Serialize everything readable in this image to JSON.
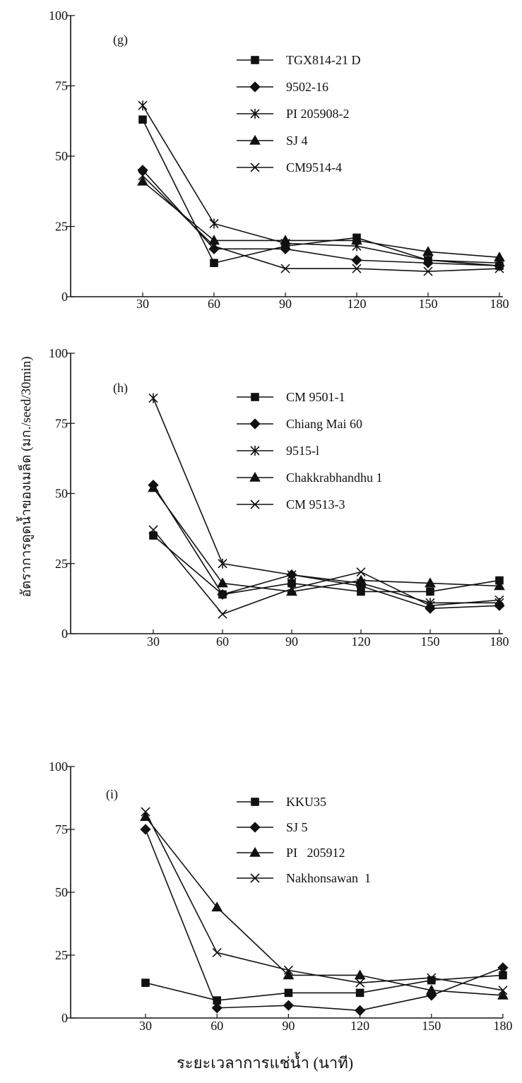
{
  "figure": {
    "xlabel": "ระยะเวลาการแช่น้ำ (นาที)",
    "ylabel": "อัตราการดูดน้ำของเมล็ด (มก./seed/30min)"
  },
  "chart_data": [
    {
      "type": "line",
      "panel_label": "(g)",
      "x": [
        30,
        60,
        90,
        120,
        150,
        180
      ],
      "xticks": [
        "30",
        "60",
        "90",
        "120",
        "150",
        "180"
      ],
      "yticks": [
        "0",
        "25",
        "50",
        "75",
        "100"
      ],
      "ylim": [
        0,
        100
      ],
      "legend_position": "top-right",
      "series": [
        {
          "name": "TGX814-21 D",
          "marker": "square",
          "values": [
            63,
            12,
            18,
            21,
            13,
            11
          ]
        },
        {
          "name": "9502-16",
          "marker": "diamond",
          "values": [
            45,
            17,
            17,
            13,
            12,
            11
          ]
        },
        {
          "name": "PI 205908-2",
          "marker": "asterisk",
          "values": [
            68,
            26,
            19,
            18,
            13,
            12
          ]
        },
        {
          "name": "SJ 4",
          "marker": "triangle",
          "values": [
            41,
            20,
            20,
            20,
            16,
            14
          ]
        },
        {
          "name": "CM9514-4",
          "marker": "x",
          "values": [
            43,
            18,
            10,
            10,
            9,
            10
          ]
        }
      ]
    },
    {
      "type": "line",
      "panel_label": "(h)",
      "x": [
        30,
        60,
        90,
        120,
        150,
        180
      ],
      "xticks": [
        "30",
        "60",
        "90",
        "120",
        "150",
        "180"
      ],
      "yticks": [
        "0",
        "25",
        "50",
        "75",
        "100"
      ],
      "ylim": [
        0,
        100
      ],
      "legend_position": "top-right",
      "series": [
        {
          "name": "CM 9501-1",
          "marker": "square",
          "values": [
            35,
            14,
            18,
            15,
            15,
            19
          ]
        },
        {
          "name": "Chiang Mai 60",
          "marker": "diamond",
          "values": [
            53,
            14,
            21,
            17,
            9,
            10
          ]
        },
        {
          "name": "9515-l",
          "marker": "asterisk",
          "values": [
            84,
            25,
            21,
            18,
            11,
            11
          ]
        },
        {
          "name": "Chakkrabhandhu 1",
          "marker": "triangle",
          "values": [
            52,
            18,
            15,
            19,
            18,
            17
          ]
        },
        {
          "name": "CM 9513-3",
          "marker": "x",
          "values": [
            37,
            7,
            16,
            22,
            10,
            12
          ]
        }
      ]
    },
    {
      "type": "line",
      "panel_label": "(i)",
      "x": [
        30,
        60,
        90,
        120,
        150,
        180
      ],
      "xticks": [
        "30",
        "60",
        "90",
        "120",
        "150",
        "180"
      ],
      "yticks": [
        "0",
        "25",
        "50",
        "75",
        "100"
      ],
      "ylim": [
        0,
        100
      ],
      "legend_position": "top-right",
      "series": [
        {
          "name": "KKU35",
          "marker": "square",
          "values": [
            14,
            7,
            10,
            10,
            15,
            17
          ]
        },
        {
          "name": "SJ 5",
          "marker": "diamond",
          "values": [
            75,
            4,
            5,
            3,
            9,
            20
          ]
        },
        {
          "name": "PI   205912",
          "marker": "triangle",
          "values": [
            80,
            44,
            17,
            17,
            11,
            9
          ]
        },
        {
          "name": "Nakhonsawan  1",
          "marker": "x",
          "values": [
            82,
            26,
            19,
            14,
            16,
            11
          ]
        }
      ]
    }
  ]
}
